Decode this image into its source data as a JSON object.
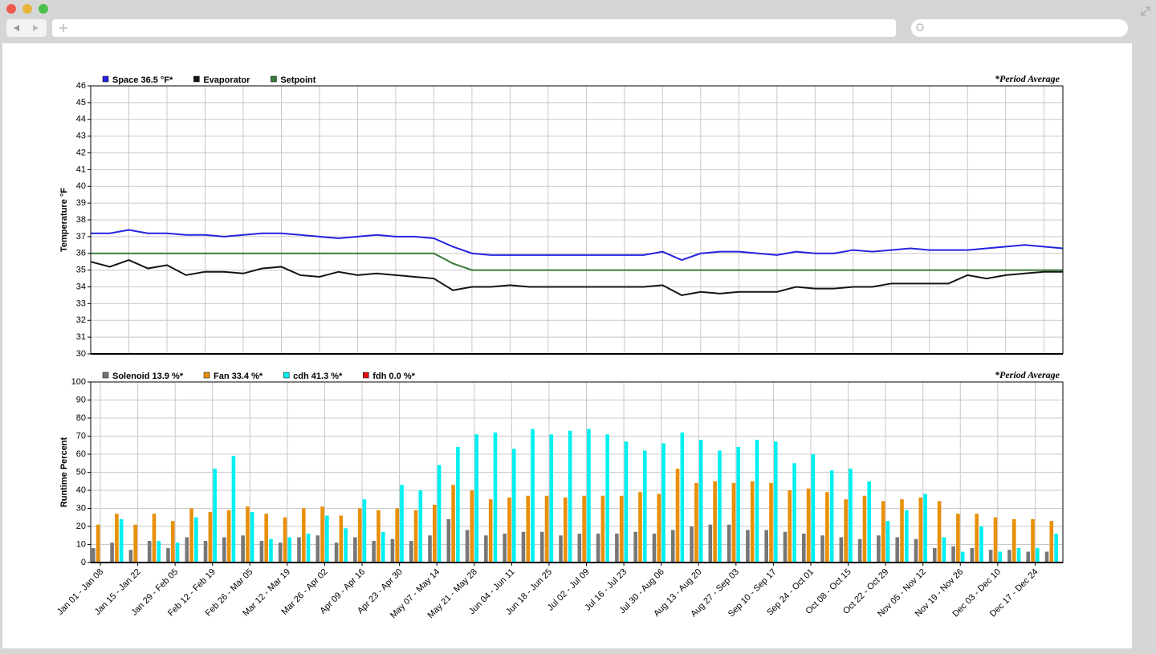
{
  "chart_data": [
    {
      "type": "line",
      "legend_note": "*Period Average",
      "y_label": "Temperature °F",
      "ylim": [
        30,
        46
      ],
      "yticks": [
        30,
        31,
        32,
        33,
        34,
        35,
        36,
        37,
        38,
        39,
        40,
        41,
        42,
        43,
        44,
        45,
        46
      ],
      "series": [
        {
          "name": "Space 36.5 °F*",
          "color": "#2424e0",
          "values": [
            37.2,
            37.2,
            37.4,
            37.2,
            37.2,
            37.1,
            37.1,
            37.0,
            37.1,
            37.2,
            37.2,
            37.1,
            37.0,
            36.9,
            37.0,
            37.1,
            37.0,
            37.0,
            36.9,
            36.4,
            36.0,
            35.9,
            35.9,
            35.9,
            35.9,
            35.9,
            35.9,
            35.9,
            35.9,
            35.9,
            36.1,
            35.6,
            36.0,
            36.1,
            36.1,
            36.0,
            35.9,
            36.1,
            36.0,
            36.0,
            36.2,
            36.1,
            36.2,
            36.3,
            36.2,
            36.2,
            36.2,
            36.3,
            36.4,
            36.5,
            36.4,
            36.3
          ]
        },
        {
          "name": "Evaporator",
          "color": "#151515",
          "values": [
            35.5,
            35.2,
            35.6,
            35.1,
            35.3,
            34.7,
            34.9,
            34.9,
            34.8,
            35.1,
            35.2,
            34.7,
            34.6,
            34.9,
            34.7,
            34.8,
            34.7,
            34.6,
            34.5,
            33.8,
            34.0,
            34.0,
            34.1,
            34.0,
            34.0,
            34.0,
            34.0,
            34.0,
            34.0,
            34.0,
            34.1,
            33.5,
            33.7,
            33.6,
            33.7,
            33.7,
            33.7,
            34.0,
            33.9,
            33.9,
            34.0,
            34.0,
            34.2,
            34.2,
            34.2,
            34.2,
            34.7,
            34.5,
            34.7,
            34.8,
            34.9,
            34.9
          ]
        },
        {
          "name": "Setpoint",
          "color": "#3a7a3a",
          "values": [
            36,
            36,
            36,
            36,
            36,
            36,
            36,
            36,
            36,
            36,
            36,
            36,
            36,
            36,
            36,
            36,
            36,
            36,
            36,
            35.4,
            35,
            35,
            35,
            35,
            35,
            35,
            35,
            35,
            35,
            35,
            35,
            35,
            35,
            35,
            35,
            35,
            35,
            35,
            35,
            35,
            35,
            35,
            35,
            35,
            35,
            35,
            35,
            35,
            35,
            35,
            35,
            35
          ]
        }
      ]
    },
    {
      "type": "bar",
      "legend_note": "*Period Average",
      "y_label": "Runtime Percent",
      "ylim": [
        0,
        100
      ],
      "yticks": [
        0,
        10,
        20,
        30,
        40,
        50,
        60,
        70,
        80,
        90,
        100
      ],
      "categories": [
        "Jan 01 - Jan 08",
        null,
        "Jan 15 - Jan 22",
        null,
        "Jan 29 - Feb 05",
        null,
        "Feb 12 - Feb 19",
        null,
        "Feb 26 - Mar 05",
        null,
        "Mar 12 - Mar 19",
        null,
        "Mar 26 - Apr 02",
        null,
        "Apr 09 - Apr 16",
        null,
        "Apr 23 - Apr 30",
        null,
        "May 07 - May 14",
        null,
        "May 21 - May 28",
        null,
        "Jun 04 - Jun 11",
        null,
        "Jun 18 - Jun 25",
        null,
        "Jul 02 - Jul 09",
        null,
        "Jul 16 - Jul 23",
        null,
        "Jul 30 - Aug 06",
        null,
        "Aug 13 - Aug 20",
        null,
        "Aug 27 - Sep 03",
        null,
        "Sep 10 - Sep 17",
        null,
        "Sep 24 - Oct 01",
        null,
        "Oct 08 - Oct 15",
        null,
        "Oct 22 - Oct 29",
        null,
        "Nov 05 - Nov 12",
        null,
        "Nov 19 - Nov 26",
        null,
        "Dec 03 - Dec 10",
        null,
        "Dec 17 - Dec 24",
        null
      ],
      "series": [
        {
          "name": "Solenoid 13.9 %*",
          "color": "#777777",
          "values": [
            8,
            11,
            7,
            12,
            8,
            14,
            12,
            14,
            15,
            12,
            11,
            14,
            15,
            11,
            14,
            12,
            13,
            12,
            15,
            24,
            18,
            15,
            16,
            17,
            17,
            15,
            16,
            16,
            16,
            17,
            16,
            18,
            20,
            21,
            21,
            18,
            18,
            17,
            16,
            15,
            14,
            13,
            15,
            14,
            13,
            8,
            9,
            8,
            7,
            7,
            6,
            6
          ]
        },
        {
          "name": "Fan 33.4 %*",
          "color": "#e8900a",
          "values": [
            21,
            27,
            21,
            27,
            23,
            30,
            28,
            29,
            31,
            27,
            25,
            30,
            31,
            26,
            30,
            29,
            30,
            29,
            32,
            43,
            40,
            35,
            36,
            37,
            37,
            36,
            37,
            37,
            37,
            39,
            38,
            52,
            44,
            45,
            44,
            45,
            44,
            40,
            41,
            39,
            35,
            37,
            34,
            35,
            36,
            34,
            27,
            27,
            25,
            24,
            24,
            23
          ]
        },
        {
          "name": "cdh 41.3 %*",
          "color": "#00f0f0",
          "values": [
            0,
            24,
            0,
            12,
            11,
            25,
            52,
            59,
            28,
            13,
            14,
            16,
            26,
            19,
            35,
            17,
            43,
            40,
            54,
            64,
            71,
            72,
            63,
            74,
            71,
            73,
            74,
            71,
            67,
            62,
            66,
            72,
            68,
            62,
            64,
            68,
            67,
            55,
            60,
            51,
            52,
            45,
            23,
            29,
            38,
            14,
            6,
            20,
            6,
            8,
            8,
            16
          ]
        },
        {
          "name": "fdh 0.0 %*",
          "color": "#e01010",
          "values": [
            0,
            0,
            0,
            0,
            0,
            0,
            0,
            0,
            0,
            0,
            0,
            0,
            0,
            0,
            0,
            0,
            0,
            0,
            0,
            0,
            0,
            0,
            0,
            0,
            0,
            0,
            0,
            0,
            0,
            0,
            0,
            0,
            0,
            0,
            0,
            0,
            0,
            0,
            0,
            0,
            0,
            0,
            0,
            0,
            0,
            0,
            0,
            0,
            0,
            0,
            0,
            0
          ]
        }
      ]
    }
  ]
}
